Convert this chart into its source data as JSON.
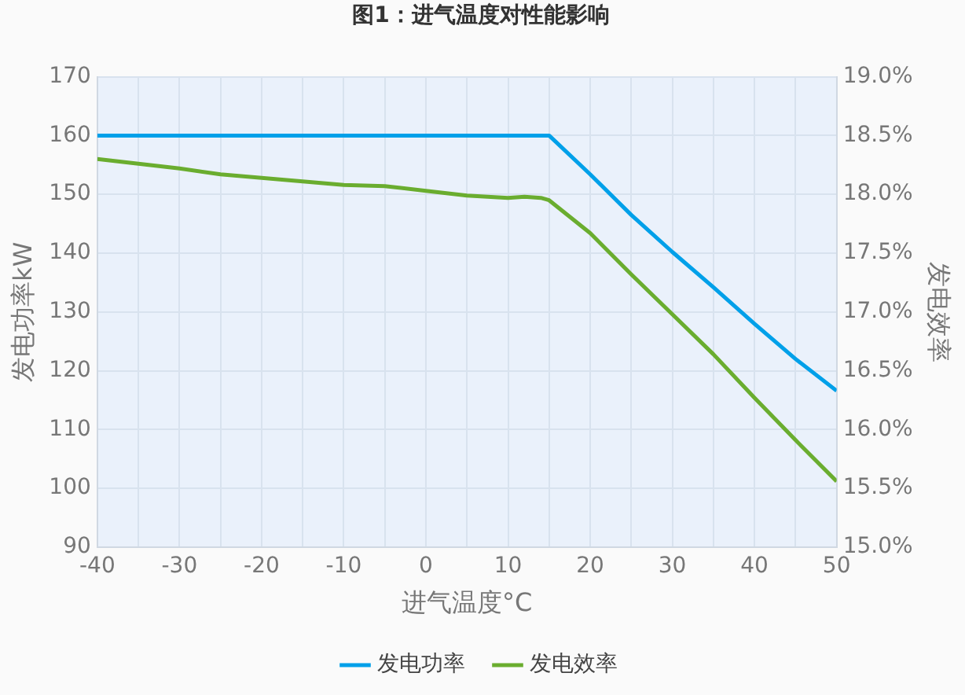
{
  "chart_data": {
    "type": "line",
    "title": "图1：进气温度对性能影响",
    "xlabel": "进气温度°C",
    "ylabel": "发电功率kW",
    "y2label": "发电效率",
    "x": [
      -40,
      -30,
      -25,
      -20,
      -10,
      -5,
      0,
      5,
      10,
      12,
      14,
      15,
      20,
      25,
      30,
      35,
      40,
      45,
      50
    ],
    "series": [
      {
        "name": "发电功率",
        "color": "#00a0e9",
        "values": [
          160,
          160,
          160,
          160,
          160,
          160,
          160,
          160,
          160,
          160,
          160,
          160,
          153.4,
          146.5,
          140.2,
          134.2,
          128,
          122,
          116.6
        ]
      },
      {
        "name": "发电效率",
        "color": "#6aad2f",
        "axis": "y2",
        "values": [
          18.3,
          18.22,
          18.17,
          18.14,
          18.08,
          18.07,
          18.03,
          17.99,
          17.97,
          17.98,
          17.97,
          17.95,
          17.67,
          17.32,
          16.98,
          16.64,
          16.27,
          15.91,
          15.56
        ]
      }
    ],
    "xlim": [
      -40,
      50
    ],
    "xticks": [
      -40,
      {
        "value": -35,
        "label": null
      },
      -30,
      {
        "value": -25,
        "label": null
      },
      -20,
      {
        "value": -15,
        "label": null
      },
      -10,
      {
        "value": -5,
        "label": null
      },
      0,
      {
        "value": 5,
        "label": null
      },
      10,
      {
        "value": 15,
        "label": null
      },
      20,
      {
        "value": 25,
        "label": null
      },
      30,
      {
        "value": 35,
        "label": null
      },
      40,
      {
        "value": 45,
        "label": null
      },
      50
    ],
    "ylim": [
      90,
      170
    ],
    "yticks": [
      90,
      100,
      110,
      120,
      130,
      140,
      150,
      160,
      170
    ],
    "y2lim": [
      15,
      19
    ],
    "y2ticks": [
      {
        "value": 15,
        "label": "15.0%"
      },
      {
        "value": 15.5,
        "label": "15.5%"
      },
      {
        "value": 16,
        "label": "16.0%"
      },
      {
        "value": 16.5,
        "label": "16.5%"
      },
      {
        "value": 17,
        "label": "17.0%"
      },
      {
        "value": 17.5,
        "label": "17.5%"
      },
      {
        "value": 18,
        "label": "18.0%"
      },
      {
        "value": 18.5,
        "label": "18.5%"
      },
      {
        "value": 19,
        "label": "19.0%"
      }
    ],
    "grid": true,
    "legend": "bottom",
    "marker": "none",
    "line_style": "solid"
  }
}
